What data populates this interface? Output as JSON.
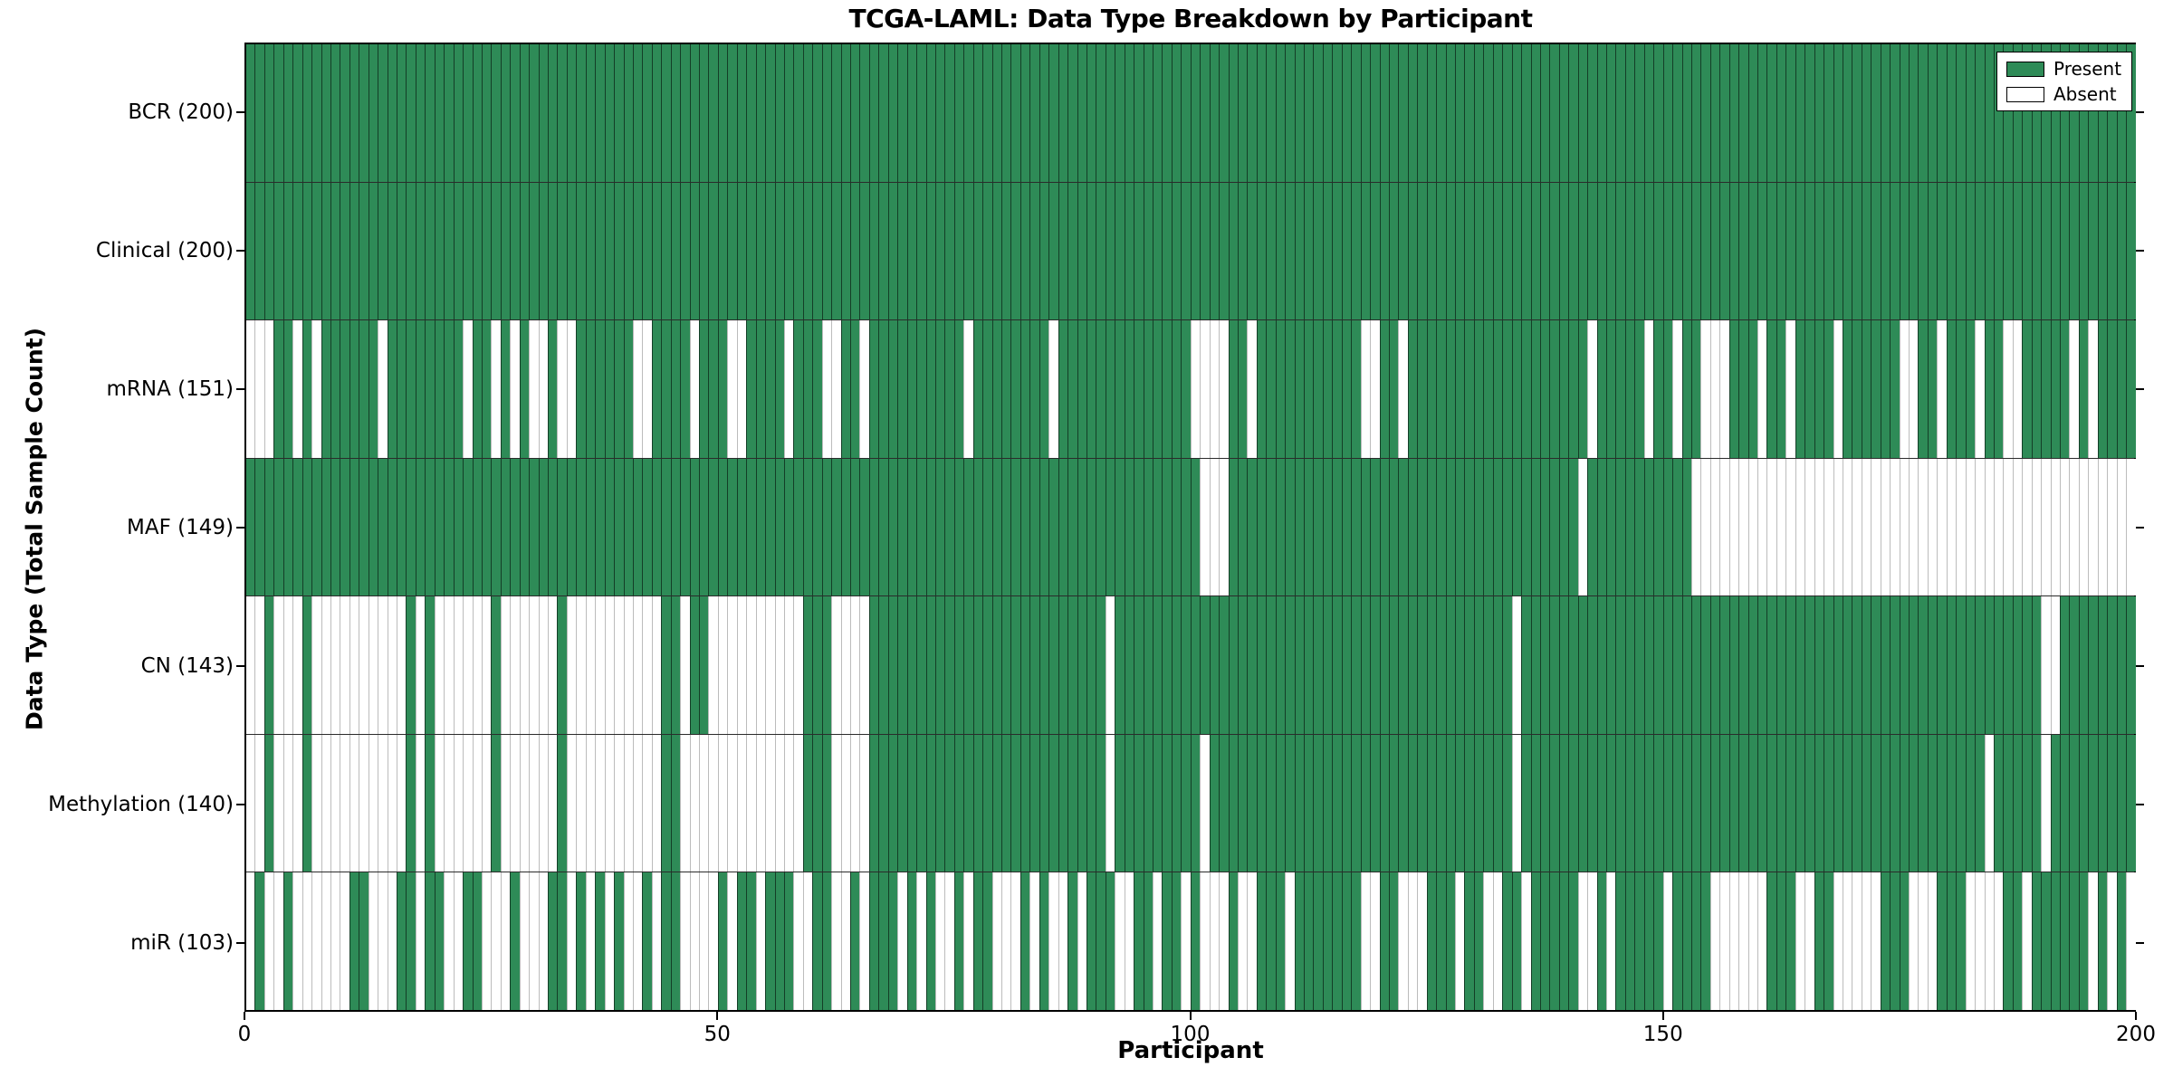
{
  "title": "TCGA-LAML: Data Type Breakdown by Participant",
  "axes": {
    "x_label": "Participant",
    "y_label": "Data Type (Total Sample Count)",
    "x_ticks": [
      0,
      50,
      100,
      150,
      200
    ],
    "x_range": [
      0,
      200
    ]
  },
  "legend": {
    "position": "upper right",
    "items": [
      {
        "label": "Present",
        "color": "#2e8b57"
      },
      {
        "label": "Absent",
        "color": "#ffffff"
      }
    ]
  },
  "colors": {
    "present": "#2e8b57",
    "absent": "#ffffff",
    "cell_edge_on_present": "rgba(0,0,0,0.55)",
    "cell_edge_on_absent": "#bcbcbc",
    "row_separator": "#2b2b2b",
    "axis": "#000000"
  },
  "chart_data": {
    "type": "heatmap",
    "x_unit": "participant index 0-199",
    "n_participants": 200,
    "value_encoding": {
      "1": "Present",
      "0": "Absent"
    },
    "categories_y": [
      "BCR",
      "Clinical",
      "mRNA",
      "MAF",
      "CN",
      "Methylation",
      "miR"
    ],
    "series": [
      {
        "name": "BCR",
        "label": "BCR (200)",
        "total": 200,
        "pattern_segments": [
          "11111111111111111111111111111111111111111111111111",
          "11111111111111111111111111111111111111111111111111",
          "11111111111111111111111111111111111111111111111111",
          "11111111111111111111111111111111111111111111111111"
        ]
      },
      {
        "name": "Clinical",
        "label": "Clinical (200)",
        "total": 200,
        "pattern_segments": [
          "11111111111111111111111111111111111111111111111111",
          "11111111111111111111111111111111111111111111111111",
          "11111111111111111111111111111111111111111111111111",
          "11111111111111111111111111111111111111111111111111"
        ]
      },
      {
        "name": "mRNA",
        "label": "mRNA (151)",
        "total": 151,
        "pattern_segments": [
          "00011010111111011111111011010100100111111001111011",
          "10011110111001101111111111011111111011111111111111",
          "00001101111111111100110111111111111111111101111101",
          "10110001110110111101111110011011101100111110101111"
        ]
      },
      {
        "name": "MAF",
        "label": "MAF (149)",
        "total": 149,
        "pattern_segments": [
          "11111111111111111111111111111111111111111111111111",
          "11111111111111111111111111111111111111111111111111",
          "10001111111111111111111111111111111111111011111111",
          "11100000000000000000000000000000000000000000000000"
        ]
      },
      {
        "name": "CN",
        "label": "CN (143)",
        "total": 143,
        "pattern_segments": [
          "00100010000000000101000000100000010000000000110110",
          "00000000011100001111111111111111111111111011111111",
          "11111111111111111111111111111111110111111111111111",
          "11111111111111111111111111111111111111110011111111"
        ]
      },
      {
        "name": "Methylation",
        "label": "Methylation (140)",
        "total": 140,
        "pattern_segments": [
          "00100010000000000101000000100000010000000000110000",
          "00000000011100001111111111111111111111111011111111",
          "10111111111111111111111111111111110111111111111111",
          "11111111111111111111111111111111110111110111111111"
        ]
      },
      {
        "name": "miR",
        "label": "miR (103)",
        "total": 103,
        "pattern_segments": [
          "01001000000110001101100110001000110101010010110000",
          "10110111001100101110101001011000101001011100110110",
          "10001001110111111100110001110110011011111001011111",
          "01111000000111001100000111000111000011011111101010"
        ]
      }
    ],
    "grid": "horizontal row separators; per-cell vertical edges",
    "legend_position": "upper right"
  }
}
